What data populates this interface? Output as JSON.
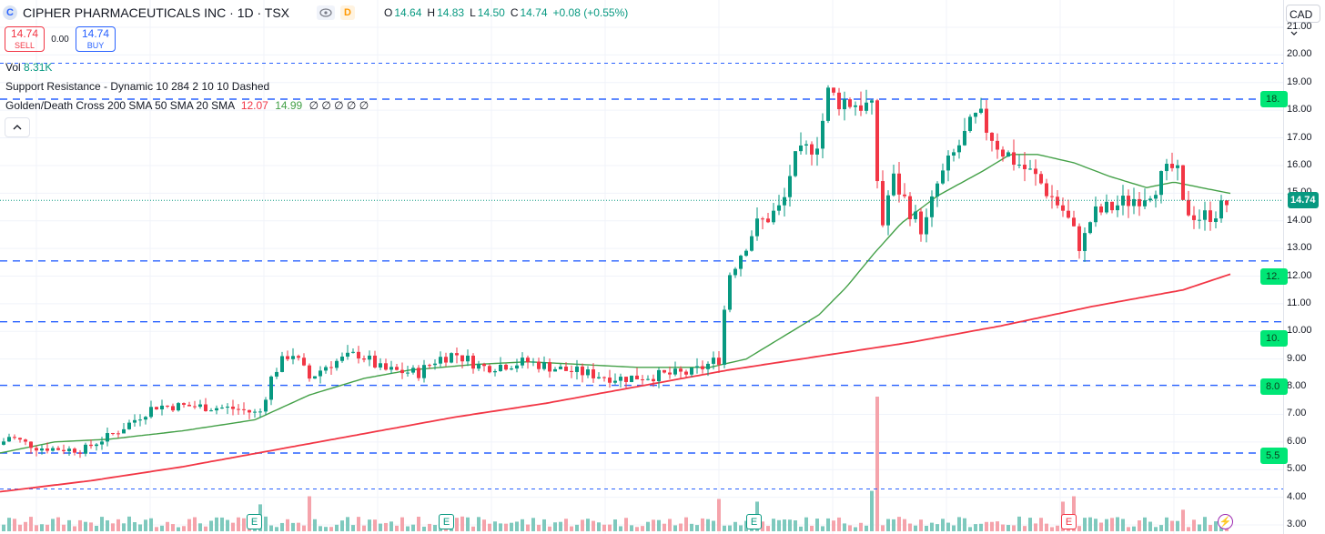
{
  "header": {
    "logo_letter": "C",
    "title": "CIPHER PHARMACEUTICALS INC · 1D · TSX",
    "interval_badge": "D",
    "ohlc": [
      {
        "k": "O",
        "v": "14.64"
      },
      {
        "k": "H",
        "v": "14.83"
      },
      {
        "k": "L",
        "v": "14.50"
      },
      {
        "k": "C",
        "v": "14.74"
      },
      {
        "k": "",
        "v": "+0.08 (+0.55%)"
      }
    ]
  },
  "trade": {
    "sell_price": "14.74",
    "sell_label": "SELL",
    "spread": "0.00",
    "buy_price": "14.74",
    "buy_label": "BUY"
  },
  "legend": {
    "vol_label": "Vol",
    "vol_value": "8.31K",
    "sr_text": "Support Resistance - Dynamic 10 284 2 10 10 Dashed",
    "gdc_text": "Golden/Death Cross 200 SMA 50 SMA 20 SMA",
    "gdc_val1": "12.07",
    "gdc_val2": "14.99",
    "gdc_rest": "∅ ∅ ∅ ∅ ∅",
    "collapse_icon": "chevron-up-icon"
  },
  "axis": {
    "currency": "CAD",
    "ticks": [
      "21.00",
      "20.00",
      "19.00",
      "18.00",
      "17.00",
      "16.00",
      "15.00",
      "14.00",
      "13.00",
      "12.00",
      "11.00",
      "10.00",
      "9.00",
      "8.00",
      "7.00",
      "6.00",
      "5.00",
      "4.00",
      "3.00"
    ],
    "last_price": "14.74",
    "level_labels": [
      "18.",
      "12.",
      "10.",
      "8.0",
      "5.5"
    ]
  },
  "events": [
    {
      "letter": "E",
      "kind": "earnings"
    },
    {
      "letter": "E",
      "kind": "earnings"
    },
    {
      "letter": "E",
      "kind": "earnings"
    },
    {
      "letter": "E",
      "kind": "earnings"
    },
    {
      "letter": "⚡",
      "kind": "news"
    }
  ],
  "colors": {
    "up": "#089981",
    "down": "#f23645",
    "sma20": "#43a047",
    "sma200": "#f23645",
    "sr_line": "#2962ff",
    "vol_up": "#7ec9bd",
    "vol_down": "#f5a3ab",
    "label_green": "#00e676"
  },
  "chart_data": {
    "type": "candlestick",
    "title": "CIPHER PHARMACEUTICALS INC · 1D · TSX",
    "ylim": [
      2.6,
      21.4
    ],
    "support_resistance": [
      19.7,
      18.4,
      12.55,
      10.35,
      8.05,
      5.6,
      4.3
    ],
    "last_close": 14.74,
    "sma200_anchors": [
      [
        0,
        4.2
      ],
      [
        100,
        4.6
      ],
      [
        200,
        5.1
      ],
      [
        300,
        5.7
      ],
      [
        400,
        6.3
      ],
      [
        500,
        6.9
      ],
      [
        600,
        7.4
      ],
      [
        700,
        8.0
      ],
      [
        800,
        8.6
      ],
      [
        900,
        9.1
      ],
      [
        1000,
        9.6
      ],
      [
        1100,
        10.2
      ],
      [
        1200,
        10.9
      ],
      [
        1300,
        11.5
      ],
      [
        1352,
        12.07
      ]
    ],
    "sma20_anchors": [
      [
        0,
        5.6
      ],
      [
        60,
        6.0
      ],
      [
        120,
        6.1
      ],
      [
        200,
        6.4
      ],
      [
        280,
        6.8
      ],
      [
        340,
        7.7
      ],
      [
        400,
        8.3
      ],
      [
        450,
        8.6
      ],
      [
        520,
        8.8
      ],
      [
        580,
        8.9
      ],
      [
        640,
        8.8
      ],
      [
        700,
        8.7
      ],
      [
        780,
        8.7
      ],
      [
        820,
        9.0
      ],
      [
        860,
        9.8
      ],
      [
        900,
        10.6
      ],
      [
        930,
        11.6
      ],
      [
        960,
        12.8
      ],
      [
        990,
        13.9
      ],
      [
        1030,
        14.9
      ],
      [
        1080,
        15.8
      ],
      [
        1110,
        16.4
      ],
      [
        1140,
        16.4
      ],
      [
        1180,
        16.1
      ],
      [
        1220,
        15.6
      ],
      [
        1260,
        15.2
      ],
      [
        1290,
        15.4
      ],
      [
        1320,
        15.2
      ],
      [
        1352,
        14.99
      ]
    ],
    "price_path": [
      [
        0,
        5.9
      ],
      [
        10,
        6.2
      ],
      [
        40,
        5.8
      ],
      [
        90,
        5.7
      ],
      [
        130,
        6.4
      ],
      [
        170,
        7.3
      ],
      [
        210,
        7.3
      ],
      [
        260,
        7.2
      ],
      [
        285,
        7.0
      ],
      [
        300,
        8.5
      ],
      [
        320,
        9.3
      ],
      [
        340,
        8.3
      ],
      [
        360,
        8.8
      ],
      [
        395,
        9.2
      ],
      [
        420,
        8.6
      ],
      [
        460,
        8.5
      ],
      [
        480,
        9.0
      ],
      [
        500,
        9.2
      ],
      [
        530,
        8.7
      ],
      [
        580,
        8.9
      ],
      [
        620,
        8.6
      ],
      [
        680,
        8.3
      ],
      [
        720,
        8.4
      ],
      [
        760,
        8.5
      ],
      [
        790,
        9.0
      ],
      [
        800,
        12.0
      ],
      [
        830,
        13.8
      ],
      [
        860,
        14.5
      ],
      [
        870,
        16.0
      ],
      [
        900,
        17.0
      ],
      [
        910,
        18.6
      ],
      [
        920,
        18.4
      ],
      [
        950,
        18.2
      ],
      [
        962,
        17.8
      ],
      [
        966,
        13.2
      ],
      [
        980,
        15.6
      ],
      [
        1000,
        14.4
      ],
      [
        1015,
        13.6
      ],
      [
        1030,
        15.3
      ],
      [
        1055,
        16.8
      ],
      [
        1075,
        17.8
      ],
      [
        1100,
        16.6
      ],
      [
        1140,
        15.5
      ],
      [
        1170,
        14.3
      ],
      [
        1188,
        13.0
      ],
      [
        1200,
        14.2
      ],
      [
        1230,
        14.6
      ],
      [
        1260,
        15.0
      ],
      [
        1292,
        16.0
      ],
      [
        1300,
        14.5
      ],
      [
        1320,
        14.1
      ],
      [
        1340,
        14.4
      ],
      [
        1352,
        14.74
      ]
    ],
    "volume_spikes": [
      [
        966,
        1.0
      ],
      [
        1178,
        0.26
      ],
      [
        1170,
        0.22
      ],
      [
        285,
        0.2
      ],
      [
        338,
        0.26
      ],
      [
        792,
        0.24
      ],
      [
        830,
        0.22
      ],
      [
        1298,
        0.16
      ],
      [
        960,
        0.3
      ]
    ]
  }
}
